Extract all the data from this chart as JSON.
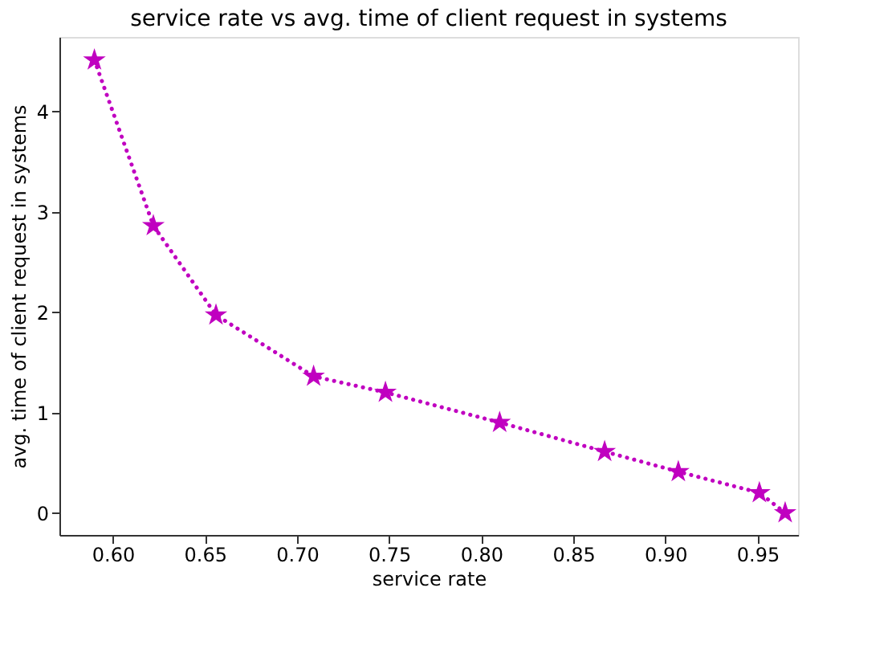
{
  "chart_data": {
    "type": "line",
    "title": "service rate vs avg. time of client request in systems",
    "xlabel": "service rate",
    "ylabel": "avg. time of client request in systems",
    "x": [
      0.59,
      0.622,
      0.656,
      0.709,
      0.748,
      0.81,
      0.867,
      0.907,
      0.951,
      0.965
    ],
    "series": [
      {
        "color": "#c000c0",
        "values": [
          4.51,
          2.86,
          1.97,
          1.36,
          1.2,
          0.9,
          0.61,
          0.41,
          0.2,
          0.0
        ]
      }
    ],
    "xlim": [
      0.571,
      0.972
    ],
    "xticks": [
      {
        "value": 0.6,
        "label": "0.60"
      },
      {
        "value": 0.65,
        "label": "0.65"
      },
      {
        "value": 0.7,
        "label": "0.70"
      },
      {
        "value": 0.75,
        "label": "0.75"
      },
      {
        "value": 0.8,
        "label": "0.80"
      },
      {
        "value": 0.85,
        "label": "0.85"
      },
      {
        "value": 0.9,
        "label": "0.90"
      },
      {
        "value": 0.95,
        "label": "0.95"
      }
    ],
    "ylim": [
      -0.22,
      4.74
    ],
    "yticks": [
      0,
      1,
      2,
      3,
      4
    ],
    "marker": "star",
    "line_style": "dotted",
    "grid": false
  }
}
